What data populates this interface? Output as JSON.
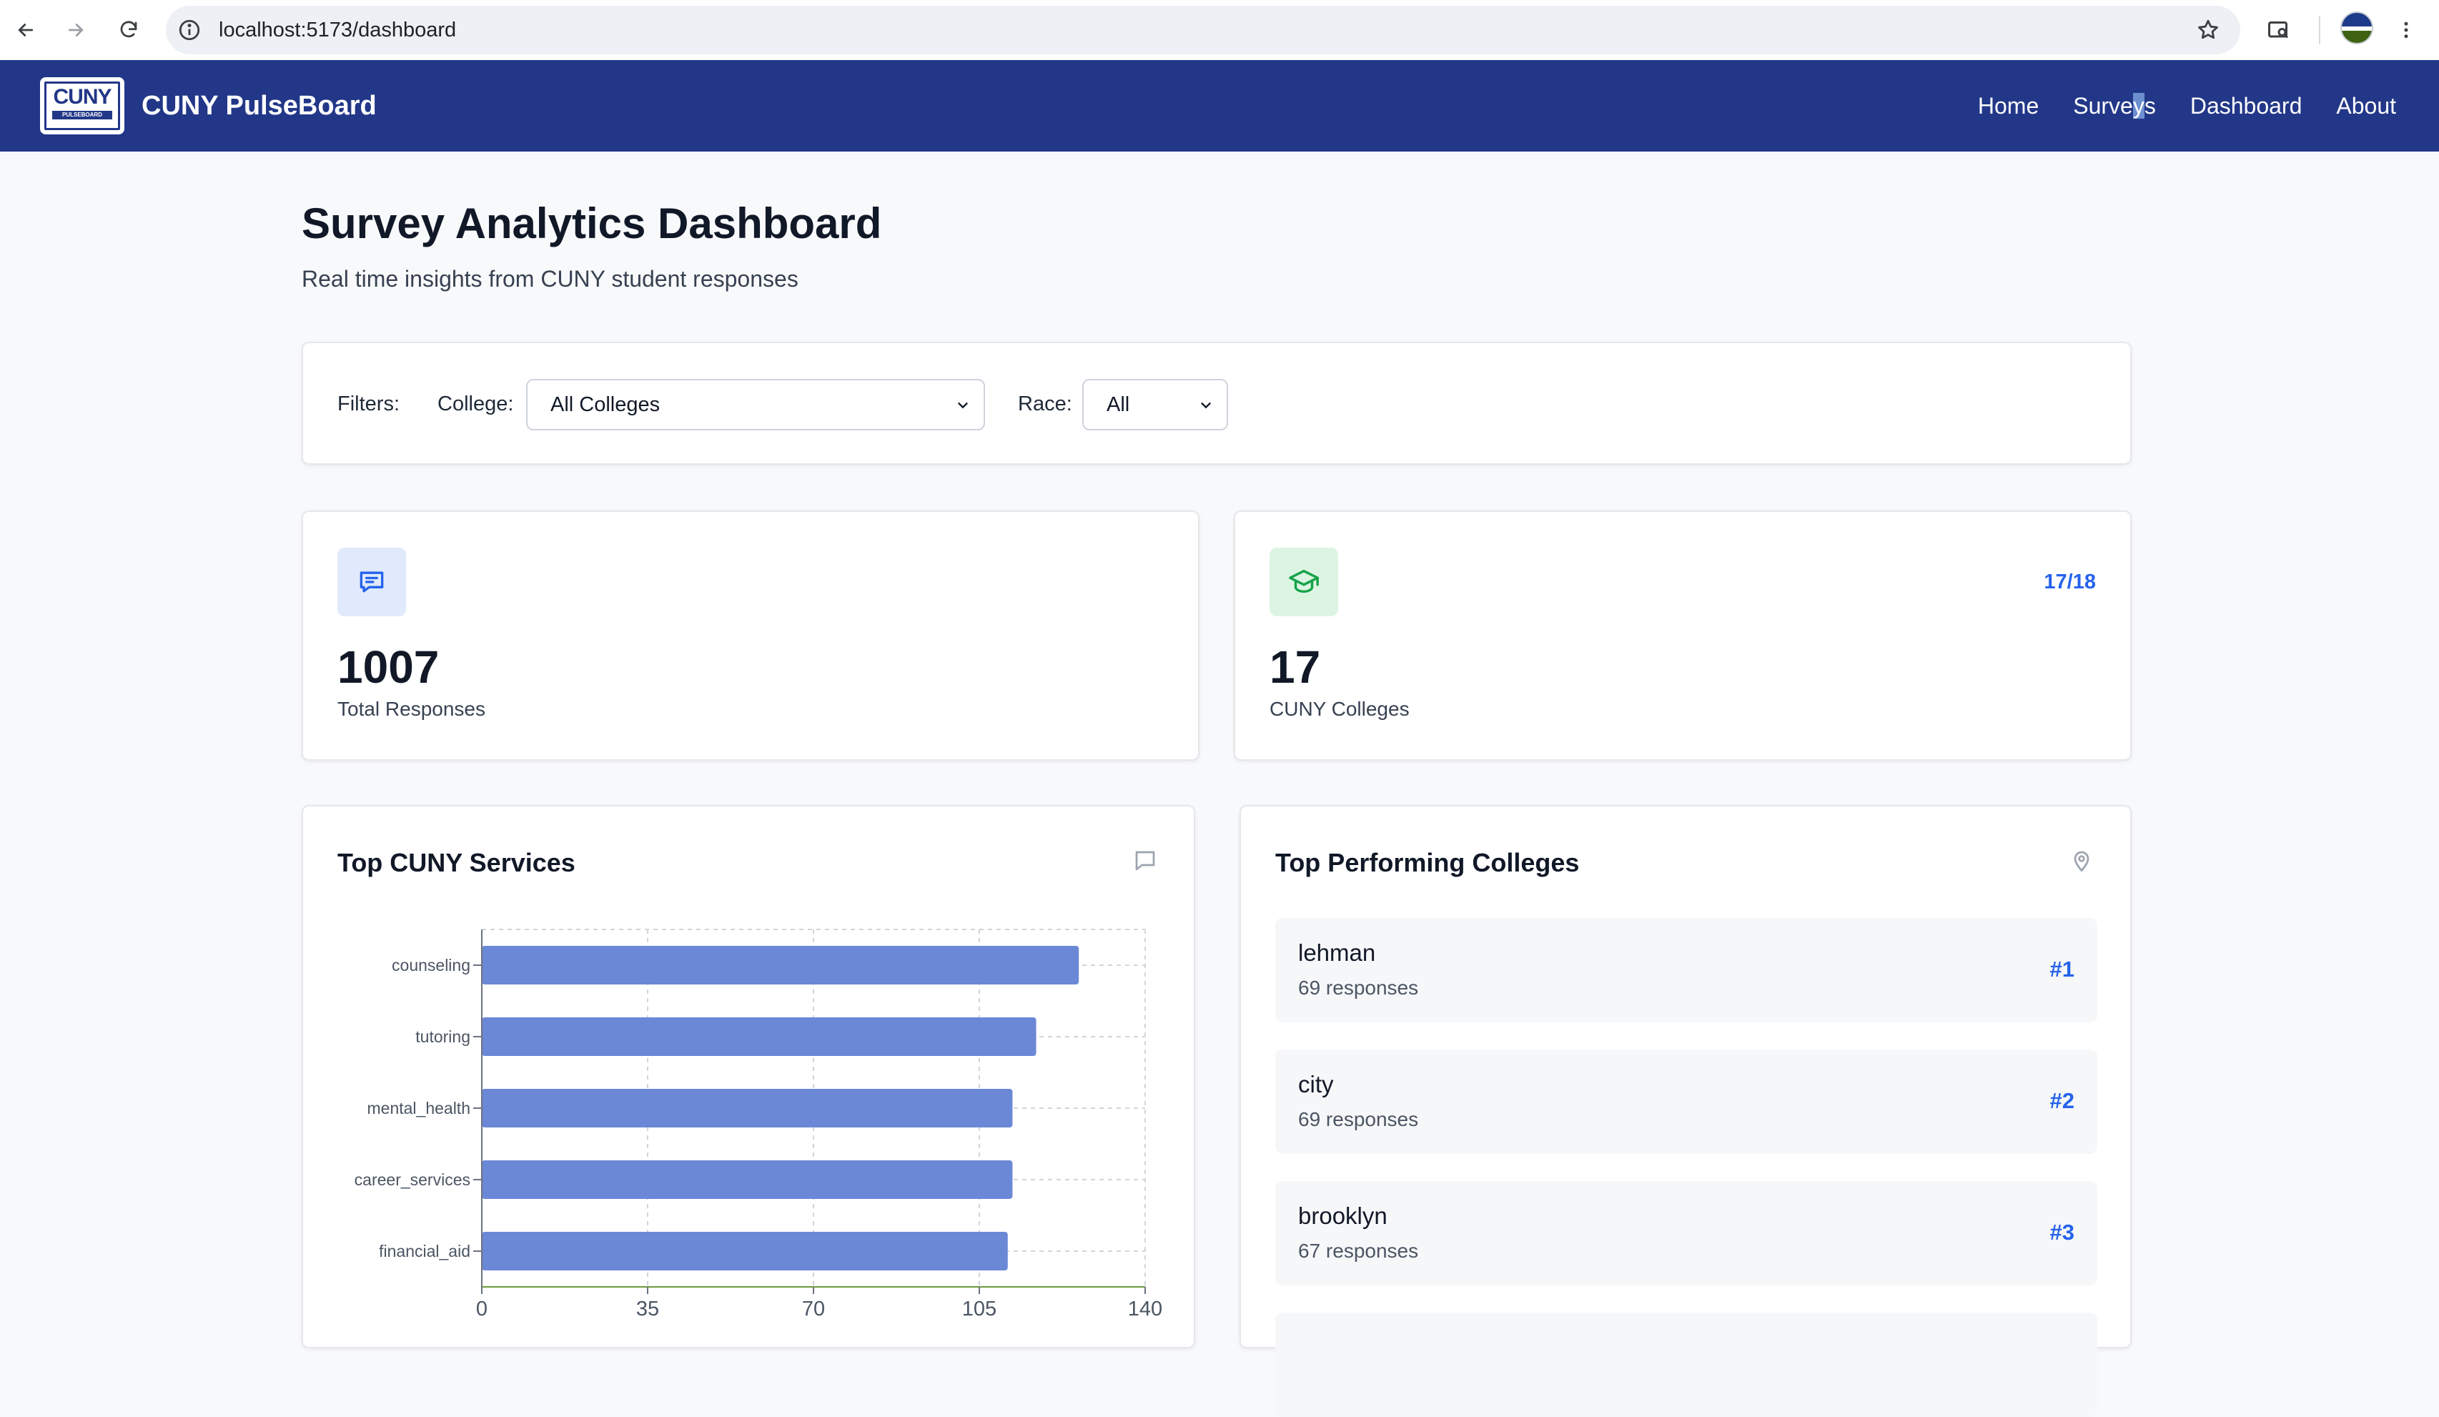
{
  "browser": {
    "url": "localhost:5173/dashboard"
  },
  "navbar": {
    "logo_text": "CUNY",
    "logo_subtext": "PULSEBOARD",
    "brand": "CUNY PulseBoard",
    "links": [
      {
        "label": "Home"
      },
      {
        "label_prefix": "Surve",
        "label_selected": "y",
        "label_suffix": "s"
      },
      {
        "label": "Dashboard"
      },
      {
        "label": "About"
      }
    ]
  },
  "header": {
    "title": "Survey Analytics Dashboard",
    "subtitle": "Real time insights from CUNY student responses"
  },
  "filters": {
    "label": "Filters:",
    "college_label": "College:",
    "college_value": "All Colleges",
    "race_label": "Race:",
    "race_value": "All"
  },
  "stats": {
    "responses": {
      "value": "1007",
      "label": "Total Responses",
      "icon": "message-icon"
    },
    "colleges": {
      "value": "17",
      "label": "CUNY Colleges",
      "ratio": "17/18",
      "icon": "graduation-cap-icon"
    }
  },
  "services_panel": {
    "title": "Top CUNY Services",
    "icon": "comment-icon"
  },
  "chart_data": {
    "type": "bar",
    "orientation": "horizontal",
    "title": "Top CUNY Services",
    "categories": [
      "counseling",
      "tutoring",
      "mental_health",
      "career_services",
      "financial_aid"
    ],
    "values": [
      126,
      117,
      112,
      112,
      111
    ],
    "xlim": [
      0,
      140
    ],
    "xticks": [
      0,
      35,
      70,
      105,
      140
    ],
    "grid": true,
    "bar_color": "#6b88d6"
  },
  "colleges_panel": {
    "title": "Top Performing Colleges",
    "icon": "map-pin-icon",
    "items": [
      {
        "name": "lehman",
        "count": "69 responses",
        "rank": "#1"
      },
      {
        "name": "city",
        "count": "69 responses",
        "rank": "#2"
      },
      {
        "name": "brooklyn",
        "count": "67 responses",
        "rank": "#3"
      }
    ]
  },
  "colors": {
    "navbar": "#223788",
    "accent": "#2563eb",
    "bar": "#6b88d6"
  }
}
